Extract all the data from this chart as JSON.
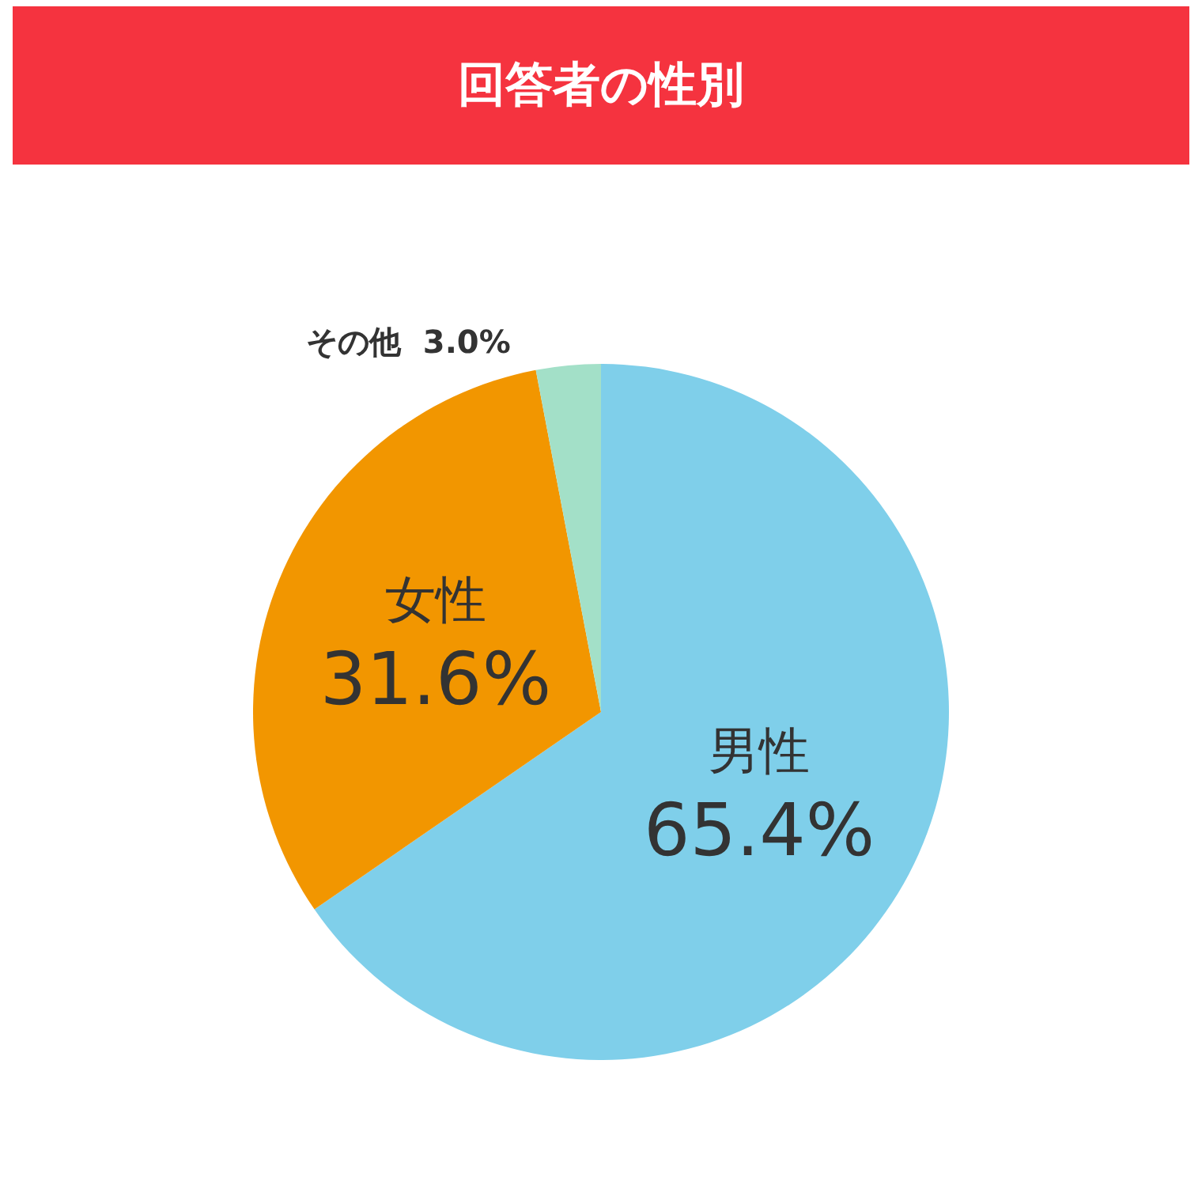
{
  "chart_data": {
    "type": "pie",
    "title": "回答者の性別",
    "categories": [
      "男性",
      "女性",
      "その他"
    ],
    "values": [
      65.4,
      31.6,
      3.0
    ],
    "value_labels": [
      "65.4%",
      "31.6%",
      "3.0%"
    ],
    "colors": [
      "#7fcfea",
      "#f29600",
      "#a3e0c8"
    ],
    "legend": false
  }
}
